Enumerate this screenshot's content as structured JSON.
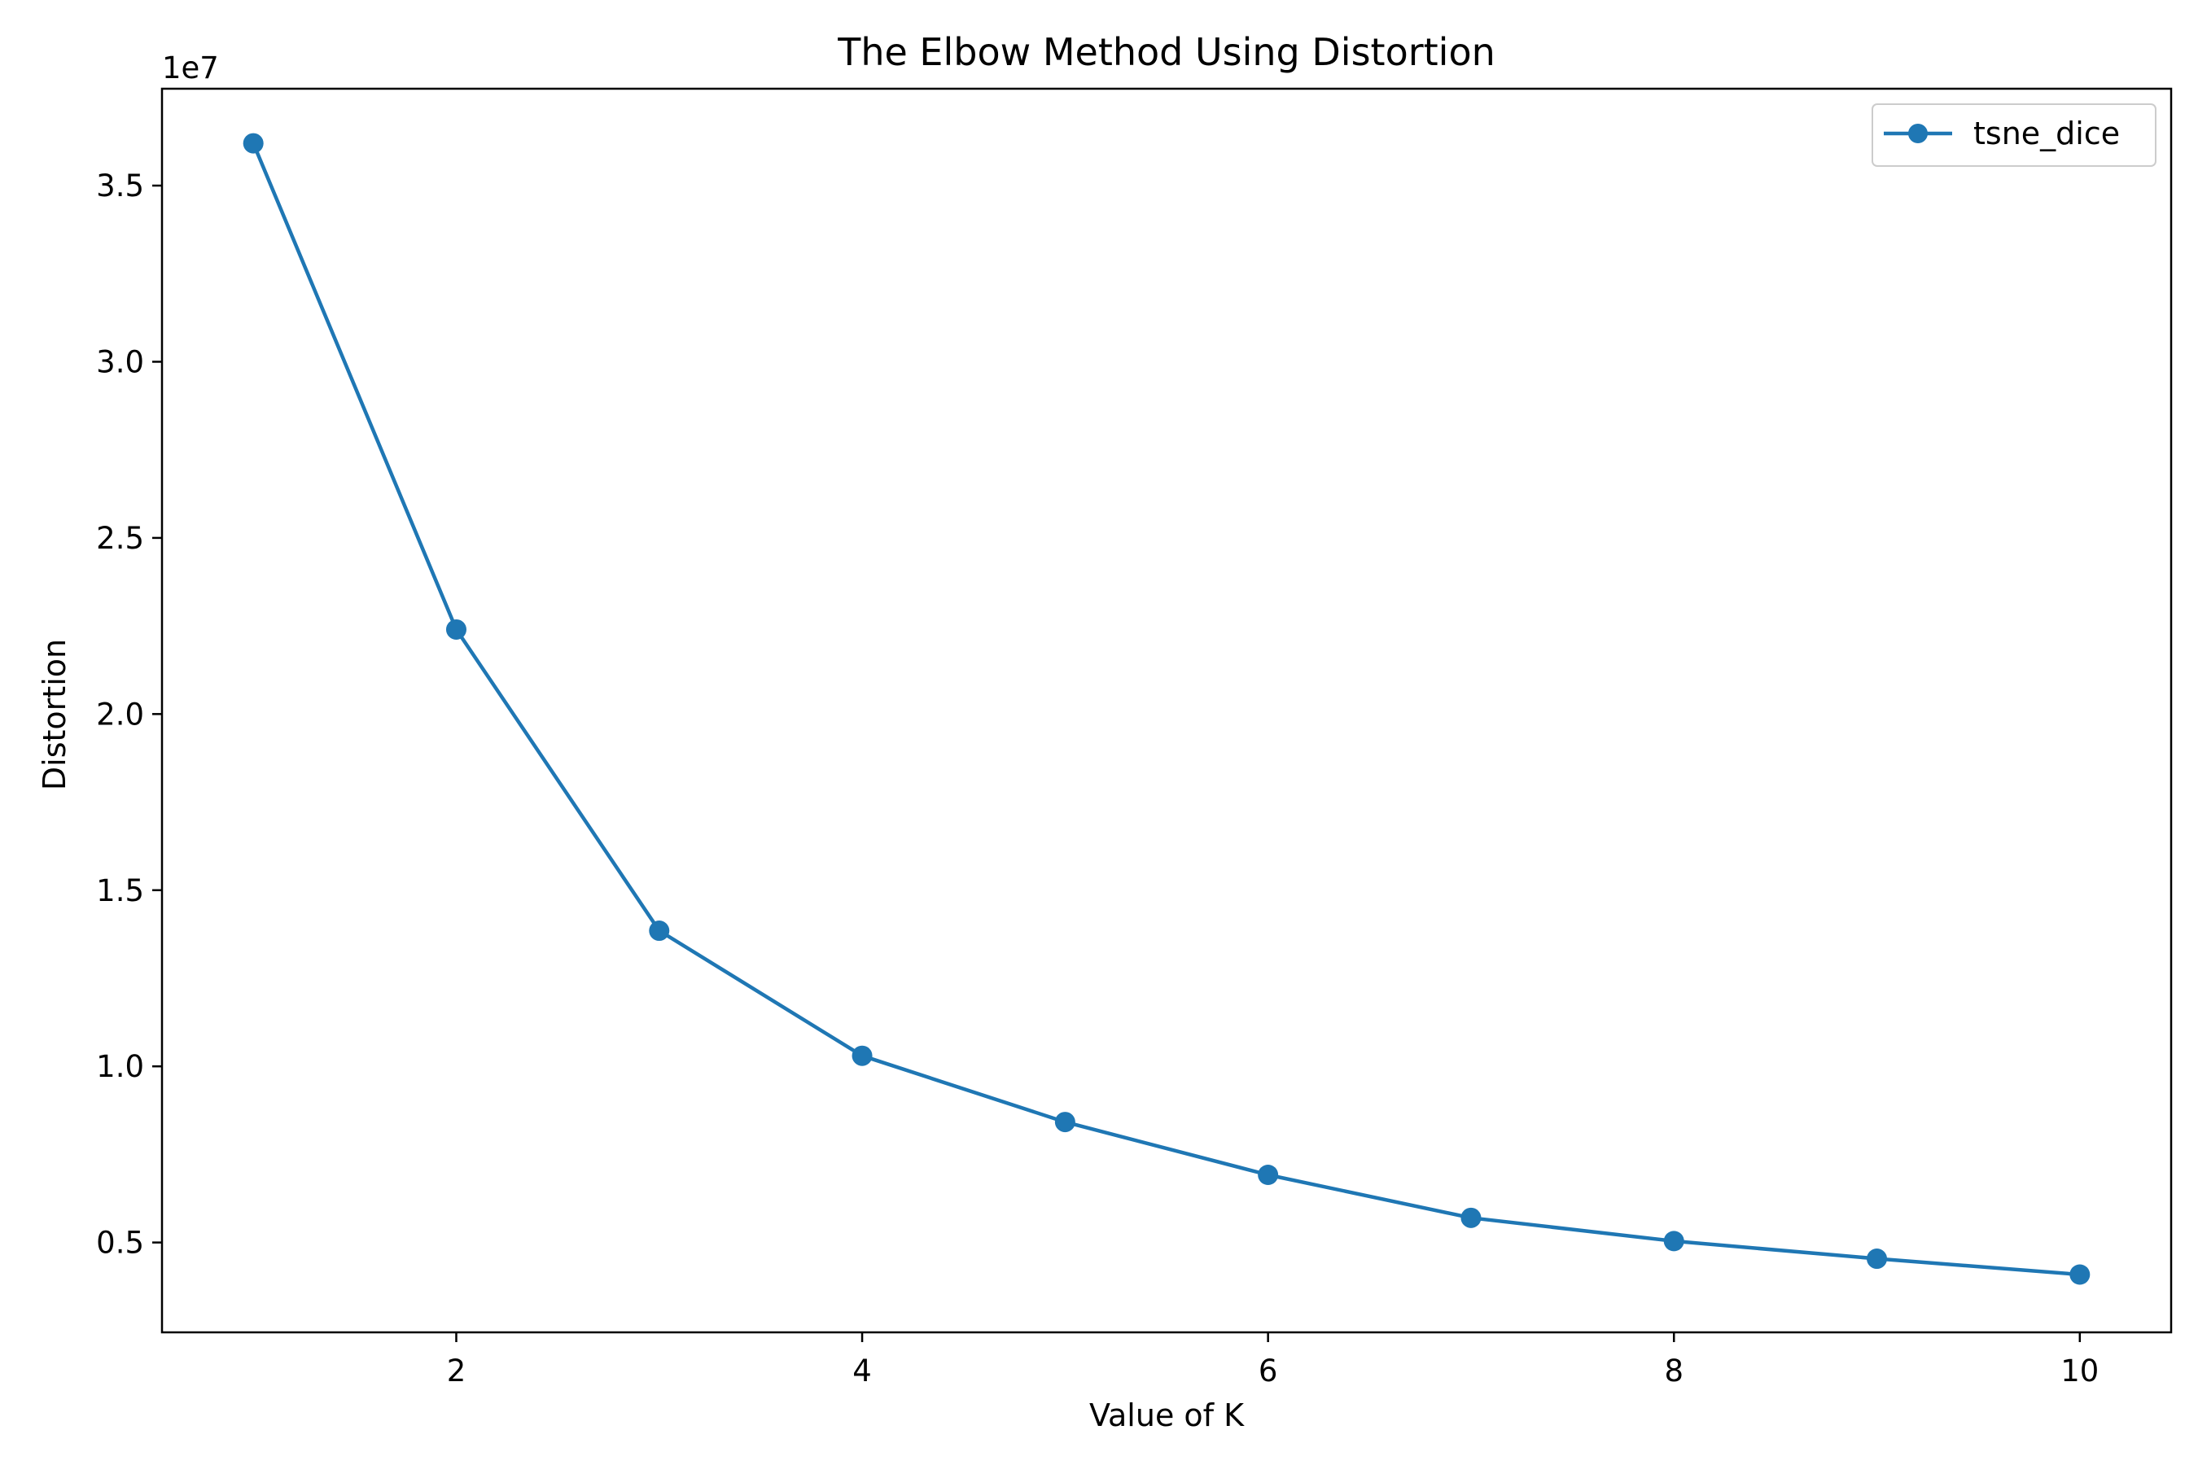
{
  "chart_data": {
    "type": "line",
    "title": "The Elbow Method Using Distortion",
    "xlabel": "Value of K",
    "ylabel": "Distortion",
    "y_offset_label": "1e7",
    "x": [
      1,
      2,
      3,
      4,
      5,
      6,
      7,
      8,
      9,
      10
    ],
    "series": [
      {
        "name": "tsne_dice",
        "color": "#1f77b4",
        "marker": "circle",
        "values": [
          36200000,
          22400000,
          13850000,
          10300000,
          8420000,
          6920000,
          5700000,
          5040000,
          4540000,
          4090000
        ]
      }
    ],
    "xlim": [
      0.55,
      10.45
    ],
    "ylim": [
      2450000,
      37750000
    ],
    "xticks": [
      2,
      4,
      6,
      8,
      10
    ],
    "xtick_labels": [
      "2",
      "4",
      "6",
      "8",
      "10"
    ],
    "yticks": [
      5000000,
      10000000,
      15000000,
      20000000,
      25000000,
      30000000,
      35000000
    ],
    "ytick_labels": [
      "0.5",
      "1.0",
      "1.5",
      "2.0",
      "2.5",
      "3.0",
      "3.5"
    ],
    "grid": false,
    "legend_position": "top-right"
  }
}
